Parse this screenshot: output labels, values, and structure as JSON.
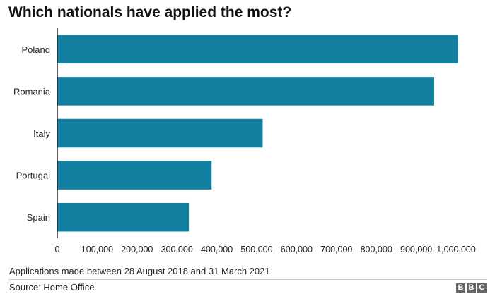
{
  "colors": {
    "bar": "#1380a1",
    "axis": "#222222",
    "logo_bg": "#666666"
  },
  "footer": {
    "note": "Applications made between 28 August 2018 and 31 March 2021",
    "source": "Source: Home Office",
    "logo_letters": [
      "B",
      "B",
      "C"
    ]
  },
  "chart_data": {
    "type": "bar",
    "orientation": "horizontal",
    "title": "Which nationals have applied the most?",
    "xlabel": "",
    "ylabel": "",
    "categories": [
      "Poland",
      "Romania",
      "Italy",
      "Portugal",
      "Spain"
    ],
    "values": [
      1005000,
      945000,
      515000,
      387000,
      330000
    ],
    "xlim": [
      0,
      1000000
    ],
    "ticks": [
      0,
      100000,
      200000,
      300000,
      400000,
      500000,
      600000,
      700000,
      800000,
      900000,
      1000000
    ],
    "tick_labels": [
      "0",
      "100,000",
      "200,000",
      "300,000",
      "400,000",
      "500,000",
      "600,000",
      "700,000",
      "800,000",
      "900,000",
      "1,000,000"
    ],
    "grid": false,
    "legend": "none"
  }
}
